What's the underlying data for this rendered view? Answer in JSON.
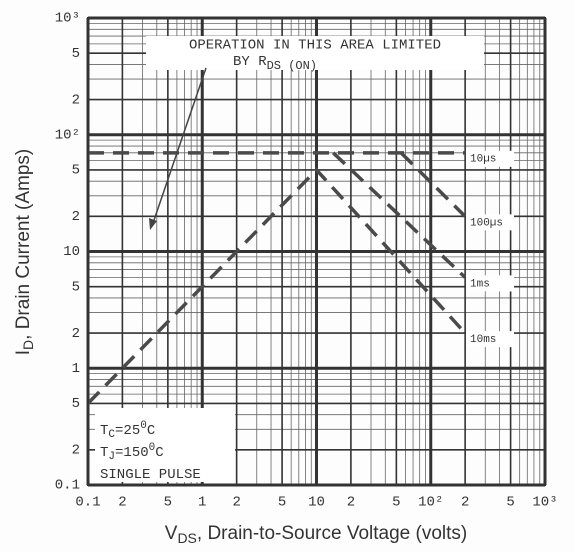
{
  "chart_data": {
    "type": "line",
    "log_x": true,
    "log_y": true,
    "grid": true,
    "minor_grid": true,
    "xlim": [
      0.1,
      1000
    ],
    "ylim": [
      0.1,
      1000
    ],
    "xticks": [
      0.1,
      {
        "value": 0.2,
        "label": "2"
      },
      {
        "value": 0.5,
        "label": "5"
      },
      1,
      2,
      5,
      10,
      {
        "value": 20,
        "label": "2"
      },
      {
        "value": 50,
        "label": "5"
      },
      {
        "value": 100,
        "label": "10²"
      },
      {
        "value": 200,
        "label": "2"
      },
      {
        "value": 500,
        "label": "5"
      },
      {
        "value": 1000,
        "label": "10³"
      }
    ],
    "yticks": [
      0.1,
      {
        "value": 0.2,
        "label": "2"
      },
      {
        "value": 0.5,
        "label": "5"
      },
      1,
      2,
      5,
      10,
      {
        "value": 20,
        "label": "2"
      },
      {
        "value": 50,
        "label": "5"
      },
      {
        "value": 100,
        "label": "10²"
      },
      {
        "value": 200,
        "label": "2"
      },
      {
        "value": 500,
        "label": "5"
      },
      {
        "value": 1000,
        "label": "10³"
      }
    ],
    "xlabel": {
      "main": "V",
      "sub": "DS",
      "rest": ", Drain-to-Source Voltage (volts)"
    },
    "ylabel": {
      "main": "I",
      "sub": "D",
      "rest": ", Drain Current (Amps)"
    },
    "series": [
      {
        "name": "10µs",
        "color": "#4a4a4a",
        "x": [
          0.1,
          200
        ],
        "values": [
          70,
          70
        ]
      },
      {
        "name": "100µs",
        "color": "#4a4a4a",
        "x": [
          55,
          200
        ],
        "values": [
          70,
          20
        ]
      },
      {
        "name": "1ms",
        "color": "#4a4a4a",
        "x": [
          14,
          200
        ],
        "values": [
          70,
          6
        ]
      },
      {
        "name": "10ms",
        "color": "#4a4a4a",
        "x": [
          0.1,
          10,
          200
        ],
        "values": [
          0.5,
          50,
          2
        ]
      }
    ],
    "annotation": {
      "line1": "OPERATION IN THIS AREA LIMITED",
      "line2": "BY R",
      "line2_sub": "DS (ON)"
    },
    "conditions": [
      {
        "main": "T",
        "sub": "C",
        "rest": "=25",
        "sup": "0",
        "end": "C"
      },
      {
        "main": "T",
        "sub": "J",
        "rest": "=150",
        "sup": "0",
        "end": "C"
      },
      {
        "main": "SINGLE PULSE"
      }
    ]
  }
}
